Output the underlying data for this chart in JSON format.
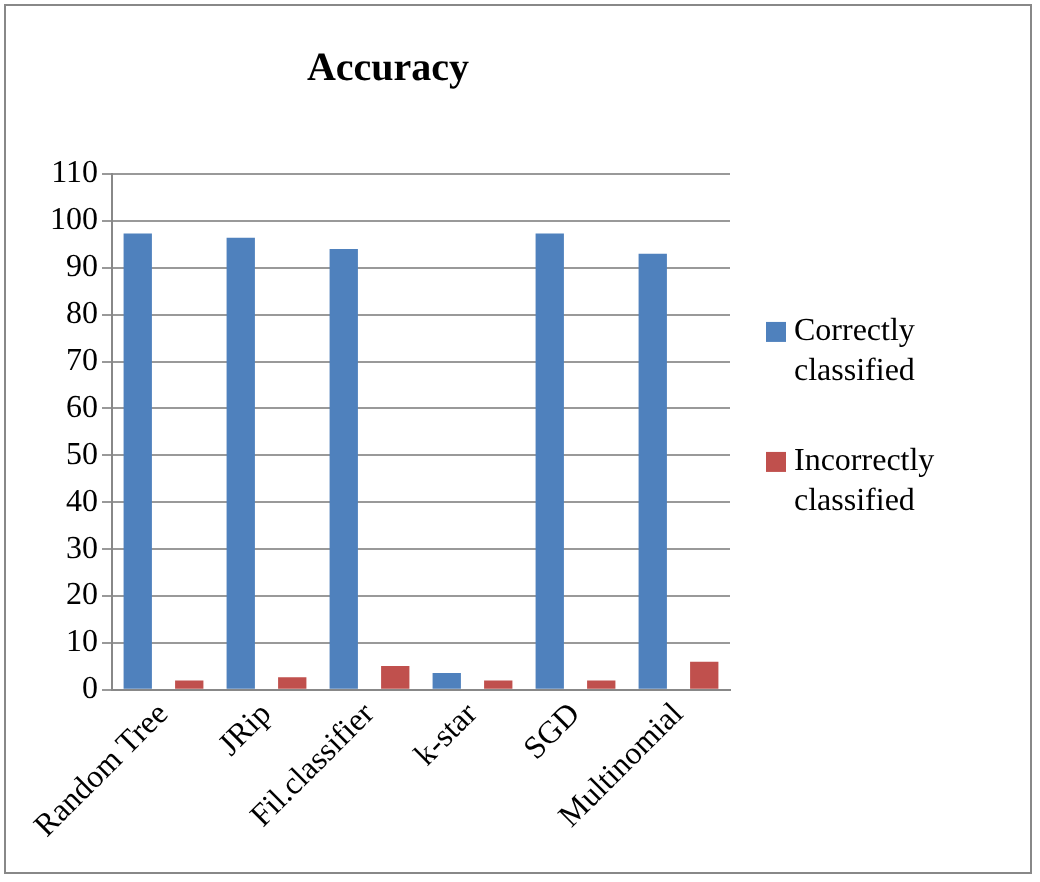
{
  "chart_data": {
    "type": "bar",
    "title": "Accuracy",
    "categories": [
      "Random Tree",
      "JRip",
      "Fil.classifier",
      "k-star",
      "SGD",
      "Multinomial"
    ],
    "series": [
      {
        "name": "Correctly classified",
        "color": "#4f81bd",
        "values": [
          97.3,
          96.4,
          94,
          3.6,
          97.3,
          93
        ]
      },
      {
        "name": "Incorrectly classified",
        "color": "#c0504d",
        "values": [
          2,
          2.7,
          5.1,
          2,
          2,
          6
        ]
      }
    ],
    "ylim": [
      0,
      110
    ],
    "yticks": [
      0,
      10,
      20,
      30,
      40,
      50,
      60,
      70,
      80,
      90,
      100,
      110
    ],
    "grid": "y",
    "legend": "right"
  }
}
